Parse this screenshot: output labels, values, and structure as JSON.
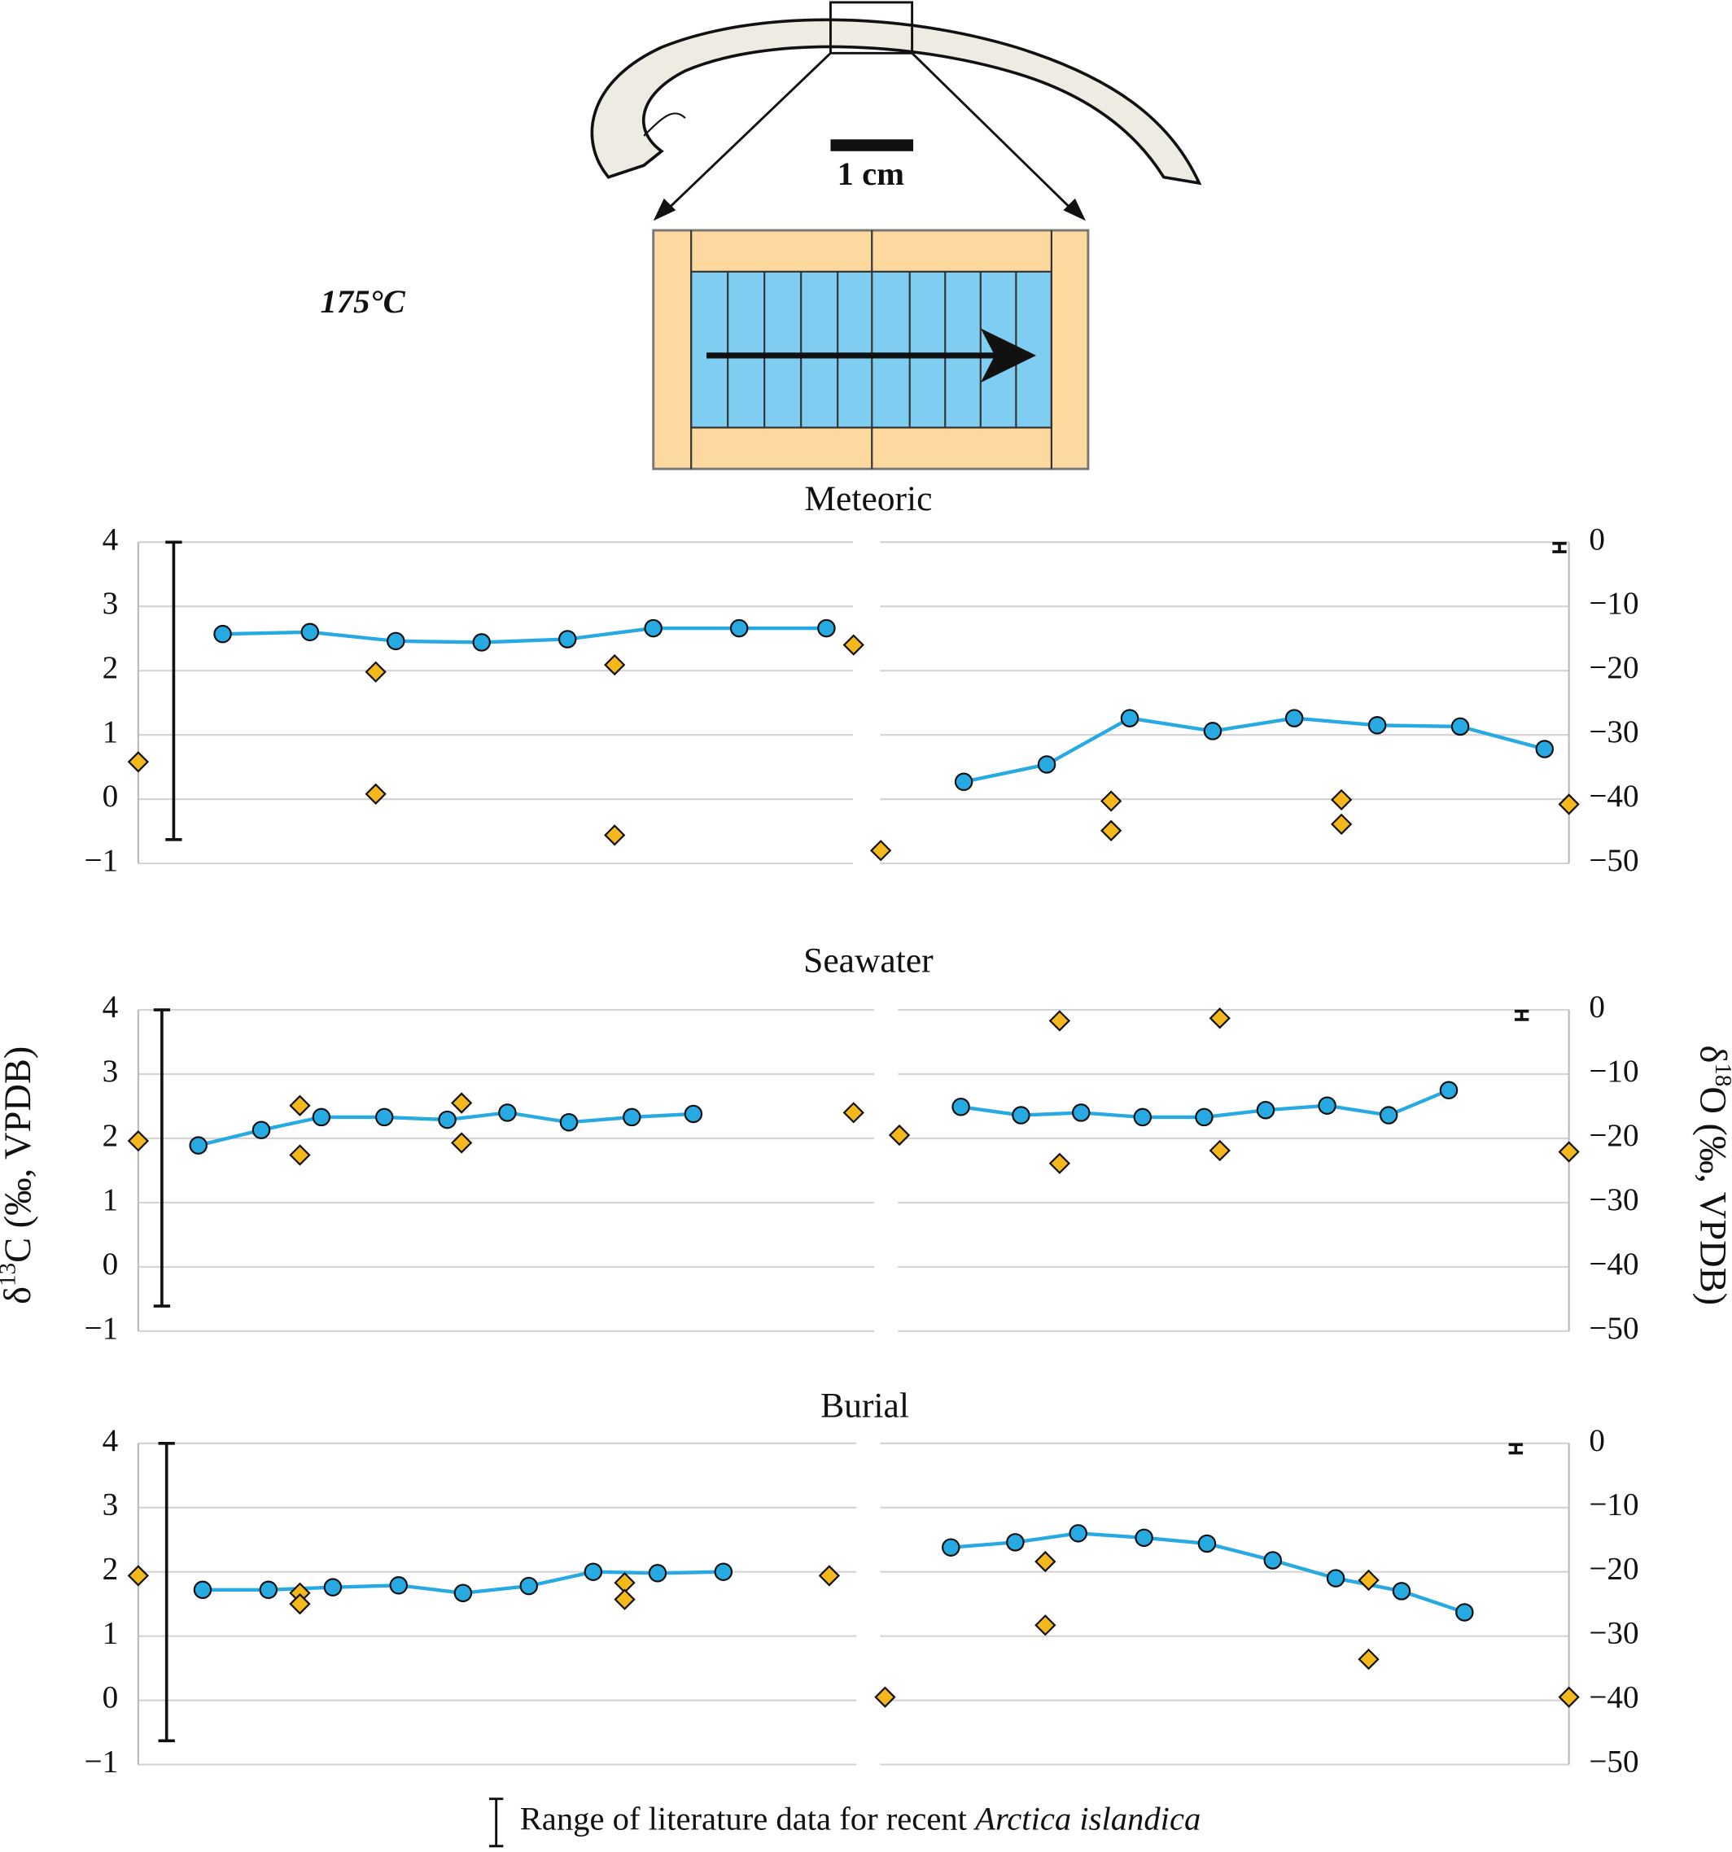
{
  "header": {
    "temperature": "175°C",
    "scale_label": "1 cm"
  },
  "y_label_left": {
    "delta": "δ",
    "iso": "13",
    "rest": "C (‰, VPDB)"
  },
  "y_label_right": {
    "delta": "δ",
    "iso": "18",
    "rest": "O (‰, VPDB)"
  },
  "legend": {
    "text": "Range of literature data for recent ",
    "species": "Arctica islandica"
  },
  "chart_data": [
    {
      "type": "line",
      "title": "Meteoric",
      "xlim": [
        0,
        100
      ],
      "ylim": [
        -1,
        4
      ],
      "yticks": [
        4,
        3,
        2,
        1,
        0,
        {
          "value": -1,
          "label": "−1"
        }
      ],
      "y2lim": [
        -50,
        0
      ],
      "y2ticks": [
        0,
        {
          "value": -10,
          "label": "−10"
        },
        {
          "value": -20,
          "label": "−20"
        },
        {
          "value": -30,
          "label": "−30"
        },
        {
          "value": -40,
          "label": "−40"
        },
        {
          "value": -50,
          "label": "−50"
        }
      ],
      "grid": true,
      "ranges": {
        "y": [
          -0.63,
          4
        ],
        "y2": [
          -1.5,
          -0.2
        ]
      },
      "series": [
        {
          "axis": "y",
          "marker": "circle",
          "connect": true,
          "color": "#27a9e1",
          "x": [
            5.9,
            12.0,
            18.0,
            24.0,
            30.0,
            36.0,
            42.0,
            48.1
          ],
          "values": [
            2.57,
            2.6,
            2.46,
            2.44,
            2.49,
            2.66,
            2.66,
            2.66
          ]
        },
        {
          "axis": "y",
          "marker": "diamond",
          "connect": false,
          "color": "#f5b81c",
          "x": [
            0,
            16.6,
            16.6,
            33.3,
            33.3,
            50.0
          ],
          "values": [
            0.58,
            1.98,
            0.08,
            2.09,
            -0.56,
            2.4
          ]
        },
        {
          "axis": "y2",
          "marker": "circle",
          "connect": true,
          "color": "#27a9e1",
          "x": [
            57.7,
            63.5,
            69.3,
            75.1,
            80.8,
            86.6,
            92.4,
            98.3
          ],
          "values": [
            -37.3,
            -34.6,
            -27.4,
            -29.4,
            -27.4,
            -28.5,
            -28.7,
            -32.2
          ]
        },
        {
          "axis": "y2",
          "marker": "diamond",
          "connect": false,
          "color": "#f5b81c",
          "x": [
            51.9,
            68.0,
            68.0,
            84.1,
            84.1,
            100
          ],
          "values": [
            -48.0,
            -40.3,
            -44.9,
            -40.1,
            -43.9,
            -40.8
          ]
        }
      ]
    },
    {
      "type": "line",
      "title": "Seawater",
      "xlim": [
        0,
        100
      ],
      "ylim": [
        -1,
        4
      ],
      "yticks": [
        4,
        3,
        2,
        1,
        0,
        {
          "value": -1,
          "label": "−1"
        }
      ],
      "y2lim": [
        -50,
        0
      ],
      "y2ticks": [
        0,
        {
          "value": -10,
          "label": "−10"
        },
        {
          "value": -20,
          "label": "−20"
        },
        {
          "value": -30,
          "label": "−30"
        },
        {
          "value": -40,
          "label": "−40"
        },
        {
          "value": -50,
          "label": "−50"
        }
      ],
      "grid": true,
      "ranges": {
        "y": [
          -0.61,
          4
        ],
        "y2": [
          -1.5,
          -0.2
        ]
      },
      "series": [
        {
          "axis": "y",
          "marker": "circle",
          "connect": true,
          "color": "#27a9e1",
          "x": [
            4.2,
            8.6,
            12.8,
            17.2,
            21.6,
            25.8,
            30.1,
            34.5,
            38.8
          ],
          "values": [
            1.89,
            2.13,
            2.33,
            2.33,
            2.29,
            2.4,
            2.25,
            2.33,
            2.38
          ]
        },
        {
          "axis": "y",
          "marker": "diamond",
          "connect": false,
          "color": "#f5b81c",
          "x": [
            0,
            11.3,
            11.3,
            22.6,
            22.6,
            50.0
          ],
          "values": [
            1.96,
            2.51,
            1.74,
            2.55,
            1.93,
            2.4
          ]
        },
        {
          "axis": "y2",
          "marker": "circle",
          "connect": true,
          "color": "#27a9e1",
          "x": [
            57.5,
            61.7,
            65.9,
            70.2,
            74.5,
            78.8,
            83.1,
            87.4,
            91.6
          ],
          "values": [
            -15.1,
            -16.4,
            -16.0,
            -16.7,
            -16.7,
            -15.6,
            -14.9,
            -16.4,
            -12.5
          ]
        },
        {
          "axis": "y2",
          "marker": "diamond",
          "connect": false,
          "color": "#f5b81c",
          "x": [
            53.2,
            64.4,
            64.4,
            75.6,
            75.6,
            100
          ],
          "values": [
            -19.5,
            -1.7,
            -23.9,
            -1.3,
            -21.9,
            -22.1
          ]
        }
      ]
    },
    {
      "type": "line",
      "title": "Burial",
      "xlim": [
        0,
        100
      ],
      "ylim": [
        -1,
        4
      ],
      "yticks": [
        4,
        3,
        2,
        1,
        0,
        {
          "value": -1,
          "label": "−1"
        }
      ],
      "y2lim": [
        -50,
        0
      ],
      "y2ticks": [
        0,
        {
          "value": -10,
          "label": "−10"
        },
        {
          "value": -20,
          "label": "−20"
        },
        {
          "value": -30,
          "label": "−30"
        },
        {
          "value": -40,
          "label": "−40"
        },
        {
          "value": -50,
          "label": "−50"
        }
      ],
      "grid": true,
      "ranges": {
        "y": [
          -0.63,
          4
        ],
        "y2": [
          -1.5,
          -0.2
        ]
      },
      "series": [
        {
          "axis": "y",
          "marker": "circle",
          "connect": true,
          "color": "#27a9e1",
          "x": [
            4.5,
            9.1,
            13.6,
            18.2,
            22.7,
            27.3,
            31.8,
            36.3,
            40.9
          ],
          "values": [
            1.72,
            1.72,
            1.76,
            1.79,
            1.67,
            1.78,
            2.0,
            1.98,
            2.0
          ]
        },
        {
          "axis": "y",
          "marker": "diamond",
          "connect": false,
          "color": "#f5b81c",
          "x": [
            0,
            11.3,
            11.3,
            34.0,
            34.0,
            48.3
          ],
          "values": [
            1.94,
            1.67,
            1.5,
            1.83,
            1.57,
            1.94
          ]
        },
        {
          "axis": "y2",
          "marker": "circle",
          "connect": true,
          "color": "#27a9e1",
          "x": [
            56.8,
            61.3,
            65.7,
            70.3,
            74.7,
            79.3,
            83.7,
            88.3,
            92.7
          ],
          "values": [
            -16.2,
            -15.4,
            -14.0,
            -14.7,
            -15.6,
            -18.2,
            -21.0,
            -23.0,
            -26.3
          ]
        },
        {
          "axis": "y2",
          "marker": "diamond",
          "connect": false,
          "color": "#f5b81c",
          "x": [
            52.2,
            63.4,
            63.4,
            86.0,
            86.0,
            100
          ],
          "values": [
            -39.5,
            -18.4,
            -28.3,
            -21.3,
            -33.6,
            -39.5
          ]
        }
      ]
    }
  ]
}
